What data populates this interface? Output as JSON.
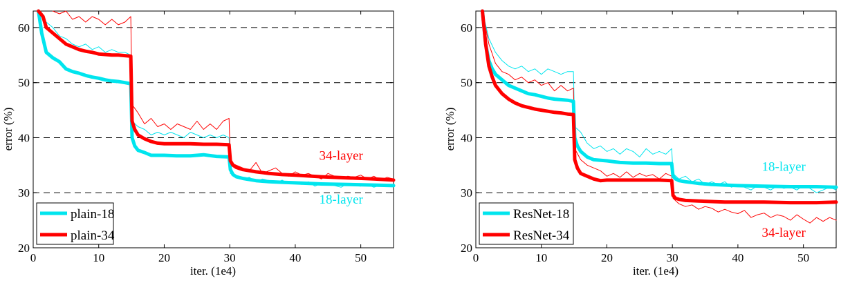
{
  "chart_data": [
    {
      "type": "line",
      "xlabel": "iter. (1e4)",
      "ylabel": "error (%)",
      "xlim": [
        0,
        55
      ],
      "ylim": [
        20,
        63
      ],
      "xticks": [
        0,
        10,
        20,
        30,
        40,
        50
      ],
      "yticks": [
        20,
        30,
        40,
        50,
        60
      ],
      "grid": "dashed horizontal at 30, 40, 50, 60",
      "legend": "bottom-left",
      "annotations": [
        {
          "text": "34-layer",
          "x": 47,
          "y": 36,
          "color": "#ff0000"
        },
        {
          "text": "18-layer",
          "x": 47,
          "y": 28,
          "color": "#00e5ee"
        }
      ],
      "series": [
        {
          "name": "plain-18",
          "color": "#00e5ee",
          "kind": "val",
          "x": [
            0.8,
            1.3,
            2,
            3,
            4,
            5,
            6,
            7,
            8,
            9,
            10,
            11,
            12,
            13,
            14,
            14.9,
            15.1,
            15.5,
            16,
            17,
            18,
            20,
            22,
            24,
            26,
            28,
            29.9,
            30.1,
            30.5,
            31,
            32,
            34,
            36,
            38,
            40,
            44,
            48,
            52,
            55
          ],
          "y": [
            63,
            59,
            55.5,
            54.5,
            53.8,
            52.5,
            52,
            51.7,
            51.3,
            51,
            50.8,
            50.5,
            50.3,
            50.2,
            50,
            49.8,
            40,
            38.5,
            37.7,
            37.3,
            36.8,
            36.8,
            36.7,
            36.7,
            36.9,
            36.6,
            36.5,
            34.2,
            33.3,
            32.9,
            32.6,
            32.2,
            32,
            31.9,
            31.8,
            31.6,
            31.5,
            31.4,
            31.3
          ]
        },
        {
          "name": "plain-34",
          "color": "#ff0000",
          "kind": "val",
          "x": [
            0.8,
            1.5,
            2,
            3,
            4,
            5,
            6,
            7,
            8,
            9,
            10,
            11,
            12,
            13,
            14,
            14.9,
            15.1,
            15.5,
            16,
            17,
            18,
            19,
            20,
            22,
            24,
            26,
            28,
            29.9,
            30.1,
            30.5,
            31,
            32,
            34,
            36,
            38,
            40,
            44,
            48,
            52,
            55
          ],
          "y": [
            63,
            62,
            60,
            59,
            58,
            57,
            56.5,
            56,
            55.7,
            55.5,
            55.2,
            55.1,
            55,
            55,
            54.9,
            54.8,
            43,
            41.5,
            40.5,
            39.8,
            39.3,
            39,
            38.9,
            38.9,
            38.9,
            38.8,
            38.8,
            38.7,
            35.8,
            35,
            34.6,
            34.2,
            33.8,
            33.5,
            33.3,
            33.2,
            32.9,
            32.7,
            32.5,
            32.3
          ]
        },
        {
          "name": "",
          "color": "#00e5ee",
          "kind": "train",
          "width": 1,
          "x": [
            1,
            2,
            3,
            4,
            5,
            6,
            7,
            8,
            9,
            10,
            11,
            12,
            13,
            14,
            14.9,
            15.1,
            16,
            17,
            18,
            19,
            20,
            21,
            22,
            23,
            24,
            25,
            26,
            27,
            28,
            29,
            29.9,
            30.1,
            31,
            32,
            33,
            34,
            35,
            36,
            37,
            38,
            39,
            40,
            41,
            42,
            43,
            44,
            45,
            46,
            47,
            48,
            49,
            50,
            51,
            52,
            53,
            54,
            55
          ],
          "y": [
            63,
            61,
            60,
            58.5,
            58,
            57,
            56.5,
            57,
            56,
            56.5,
            55.5,
            56,
            55.5,
            55.5,
            55,
            43,
            42,
            41.5,
            40.5,
            41,
            40.5,
            41,
            40.5,
            40,
            41,
            40.5,
            40,
            40.5,
            40,
            40.5,
            40,
            33.5,
            33,
            32.5,
            32.8,
            32,
            32.5,
            32.2,
            31.8,
            32.3,
            31.6,
            31.9,
            31.5,
            32,
            31.2,
            31.7,
            31.6,
            31.3,
            31,
            31.7,
            31.3,
            31.2,
            31.5,
            31,
            31.4,
            31.3,
            31.2
          ]
        },
        {
          "name": "",
          "color": "#ff0000",
          "kind": "train",
          "width": 1,
          "x": [
            3,
            4,
            5,
            6,
            7,
            8,
            9,
            10,
            11,
            12,
            13,
            14,
            14.9,
            15.1,
            16,
            17,
            18,
            19,
            20,
            21,
            22,
            23,
            24,
            25,
            26,
            27,
            28,
            29,
            29.9,
            30.1,
            31,
            32,
            33,
            34,
            35,
            36,
            37,
            38,
            39,
            40,
            41,
            42,
            43,
            44,
            45,
            46,
            47,
            48,
            49,
            50,
            51,
            52,
            53,
            54,
            55
          ],
          "y": [
            63,
            62.5,
            63,
            61.5,
            62,
            61,
            62,
            61.5,
            60.5,
            61.5,
            60.5,
            61,
            62,
            46,
            44.5,
            42.5,
            43.5,
            42,
            42.5,
            41.5,
            42.5,
            42,
            41.5,
            43,
            41.5,
            42.5,
            41.5,
            43,
            43.5,
            35.5,
            35,
            34.5,
            34,
            35.5,
            33.5,
            34,
            34.5,
            33.5,
            33,
            33.8,
            33.2,
            33.5,
            33,
            32.5,
            33.5,
            33,
            32.6,
            33,
            32.8,
            33.2,
            32.5,
            33,
            32.3,
            32.8,
            32.5
          ]
        }
      ]
    },
    {
      "type": "line",
      "xlabel": "iter. (1e4)",
      "ylabel": "error (%)",
      "xlim": [
        0,
        55
      ],
      "ylim": [
        20,
        63
      ],
      "xticks": [
        0,
        10,
        20,
        30,
        40,
        50
      ],
      "yticks": [
        20,
        30,
        40,
        50,
        60
      ],
      "grid": "dashed horizontal at 30, 40, 50, 60",
      "legend": "bottom-left",
      "annotations": [
        {
          "text": "18-layer",
          "x": 47,
          "y": 34,
          "color": "#00e5ee"
        },
        {
          "text": "34-layer",
          "x": 47,
          "y": 22,
          "color": "#ff0000"
        }
      ],
      "series": [
        {
          "name": "ResNet-18",
          "color": "#00e5ee",
          "kind": "val",
          "x": [
            1,
            1.5,
            2,
            2.5,
            3,
            4,
            5,
            6,
            7,
            8,
            9,
            10,
            11,
            12,
            13,
            14,
            14.9,
            15.1,
            15.5,
            16,
            17,
            18,
            20,
            22,
            24,
            26,
            28,
            29.9,
            30.1,
            30.5,
            31,
            32,
            34,
            36,
            38,
            40,
            44,
            48,
            52,
            55
          ],
          "y": [
            63,
            57,
            54,
            52.5,
            51.5,
            50.5,
            49.5,
            49,
            48.5,
            48,
            47.8,
            47.5,
            47.2,
            47,
            46.9,
            46.8,
            46.6,
            40,
            38.5,
            37.5,
            36.5,
            36,
            35.8,
            35.5,
            35.4,
            35.4,
            35.3,
            35.3,
            33,
            32.5,
            32.2,
            32,
            31.7,
            31.5,
            31.4,
            31.3,
            31.2,
            31.1,
            31.1,
            31
          ]
        },
        {
          "name": "ResNet-34",
          "color": "#ff0000",
          "kind": "val",
          "x": [
            1,
            1.5,
            2,
            2.5,
            3,
            4,
            5,
            6,
            7,
            8,
            9,
            10,
            11,
            12,
            13,
            14,
            14.9,
            15.1,
            15.5,
            16,
            17,
            18,
            19,
            20,
            22,
            24,
            26,
            28,
            29.9,
            30.1,
            30.5,
            31,
            32,
            34,
            36,
            38,
            40,
            44,
            48,
            52,
            55
          ],
          "y": [
            63,
            57,
            53,
            51,
            49.5,
            48,
            47,
            46.3,
            45.8,
            45.5,
            45.2,
            45,
            44.8,
            44.6,
            44.5,
            44.3,
            44.2,
            36,
            34.5,
            33.5,
            33,
            32.5,
            32.2,
            32.3,
            32.3,
            32.3,
            32.3,
            32.3,
            32.2,
            29.5,
            29,
            28.8,
            28.6,
            28.5,
            28.4,
            28.3,
            28.3,
            28.3,
            28.2,
            28.2,
            28.3
          ]
        },
        {
          "name": "",
          "color": "#00e5ee",
          "kind": "train",
          "width": 1,
          "x": [
            1,
            2,
            3,
            4,
            5,
            6,
            7,
            8,
            9,
            10,
            11,
            12,
            13,
            14,
            14.9,
            15.1,
            16,
            17,
            18,
            19,
            20,
            21,
            22,
            23,
            24,
            25,
            26,
            27,
            28,
            29,
            29.9,
            30.1,
            31,
            32,
            33,
            34,
            35,
            36,
            37,
            38,
            39,
            40,
            41,
            42,
            43,
            44,
            45,
            46,
            47,
            48,
            49,
            50,
            51,
            52,
            53,
            54,
            55
          ],
          "y": [
            63,
            58,
            55.5,
            54,
            53,
            52.5,
            53,
            52,
            52.5,
            51.5,
            52.5,
            52,
            51.5,
            52,
            52,
            42,
            41,
            39,
            38,
            38.5,
            37.5,
            38,
            37,
            38,
            37.5,
            36.5,
            38,
            37,
            37.5,
            37,
            38,
            33.5,
            32.5,
            33,
            32,
            32.5,
            31.5,
            32,
            31.5,
            32,
            31,
            31.5,
            31,
            30.5,
            31.3,
            31,
            30.5,
            31.2,
            30.8,
            31,
            30.5,
            31.3,
            30.8,
            30,
            30.5,
            31,
            30.5
          ]
        },
        {
          "name": "",
          "color": "#ff0000",
          "kind": "train",
          "width": 1,
          "x": [
            1,
            2,
            3,
            4,
            5,
            6,
            7,
            8,
            9,
            10,
            11,
            12,
            13,
            14,
            14.9,
            15.1,
            16,
            17,
            18,
            19,
            20,
            21,
            22,
            23,
            24,
            25,
            26,
            27,
            28,
            29,
            29.9,
            30.1,
            31,
            32,
            33,
            34,
            35,
            36,
            37,
            38,
            39,
            40,
            41,
            42,
            43,
            44,
            45,
            46,
            47,
            48,
            49,
            50,
            51,
            52,
            53,
            54,
            55
          ],
          "y": [
            63,
            57,
            53.5,
            52,
            51.5,
            50.5,
            51,
            50,
            50.5,
            49.5,
            50,
            48.5,
            49.5,
            48.5,
            49,
            38,
            36,
            35,
            34.5,
            34,
            33,
            33.5,
            32.8,
            33.8,
            32.8,
            33.5,
            33,
            33.3,
            32.5,
            33.5,
            33,
            29,
            28,
            27.5,
            27.8,
            27,
            27.5,
            27.2,
            26.5,
            27,
            26.5,
            26.2,
            26.8,
            25.5,
            26,
            26.3,
            25.5,
            26,
            25.7,
            25,
            26,
            25.2,
            24.5,
            25.5,
            24.8,
            25.5,
            25
          ]
        }
      ]
    }
  ]
}
